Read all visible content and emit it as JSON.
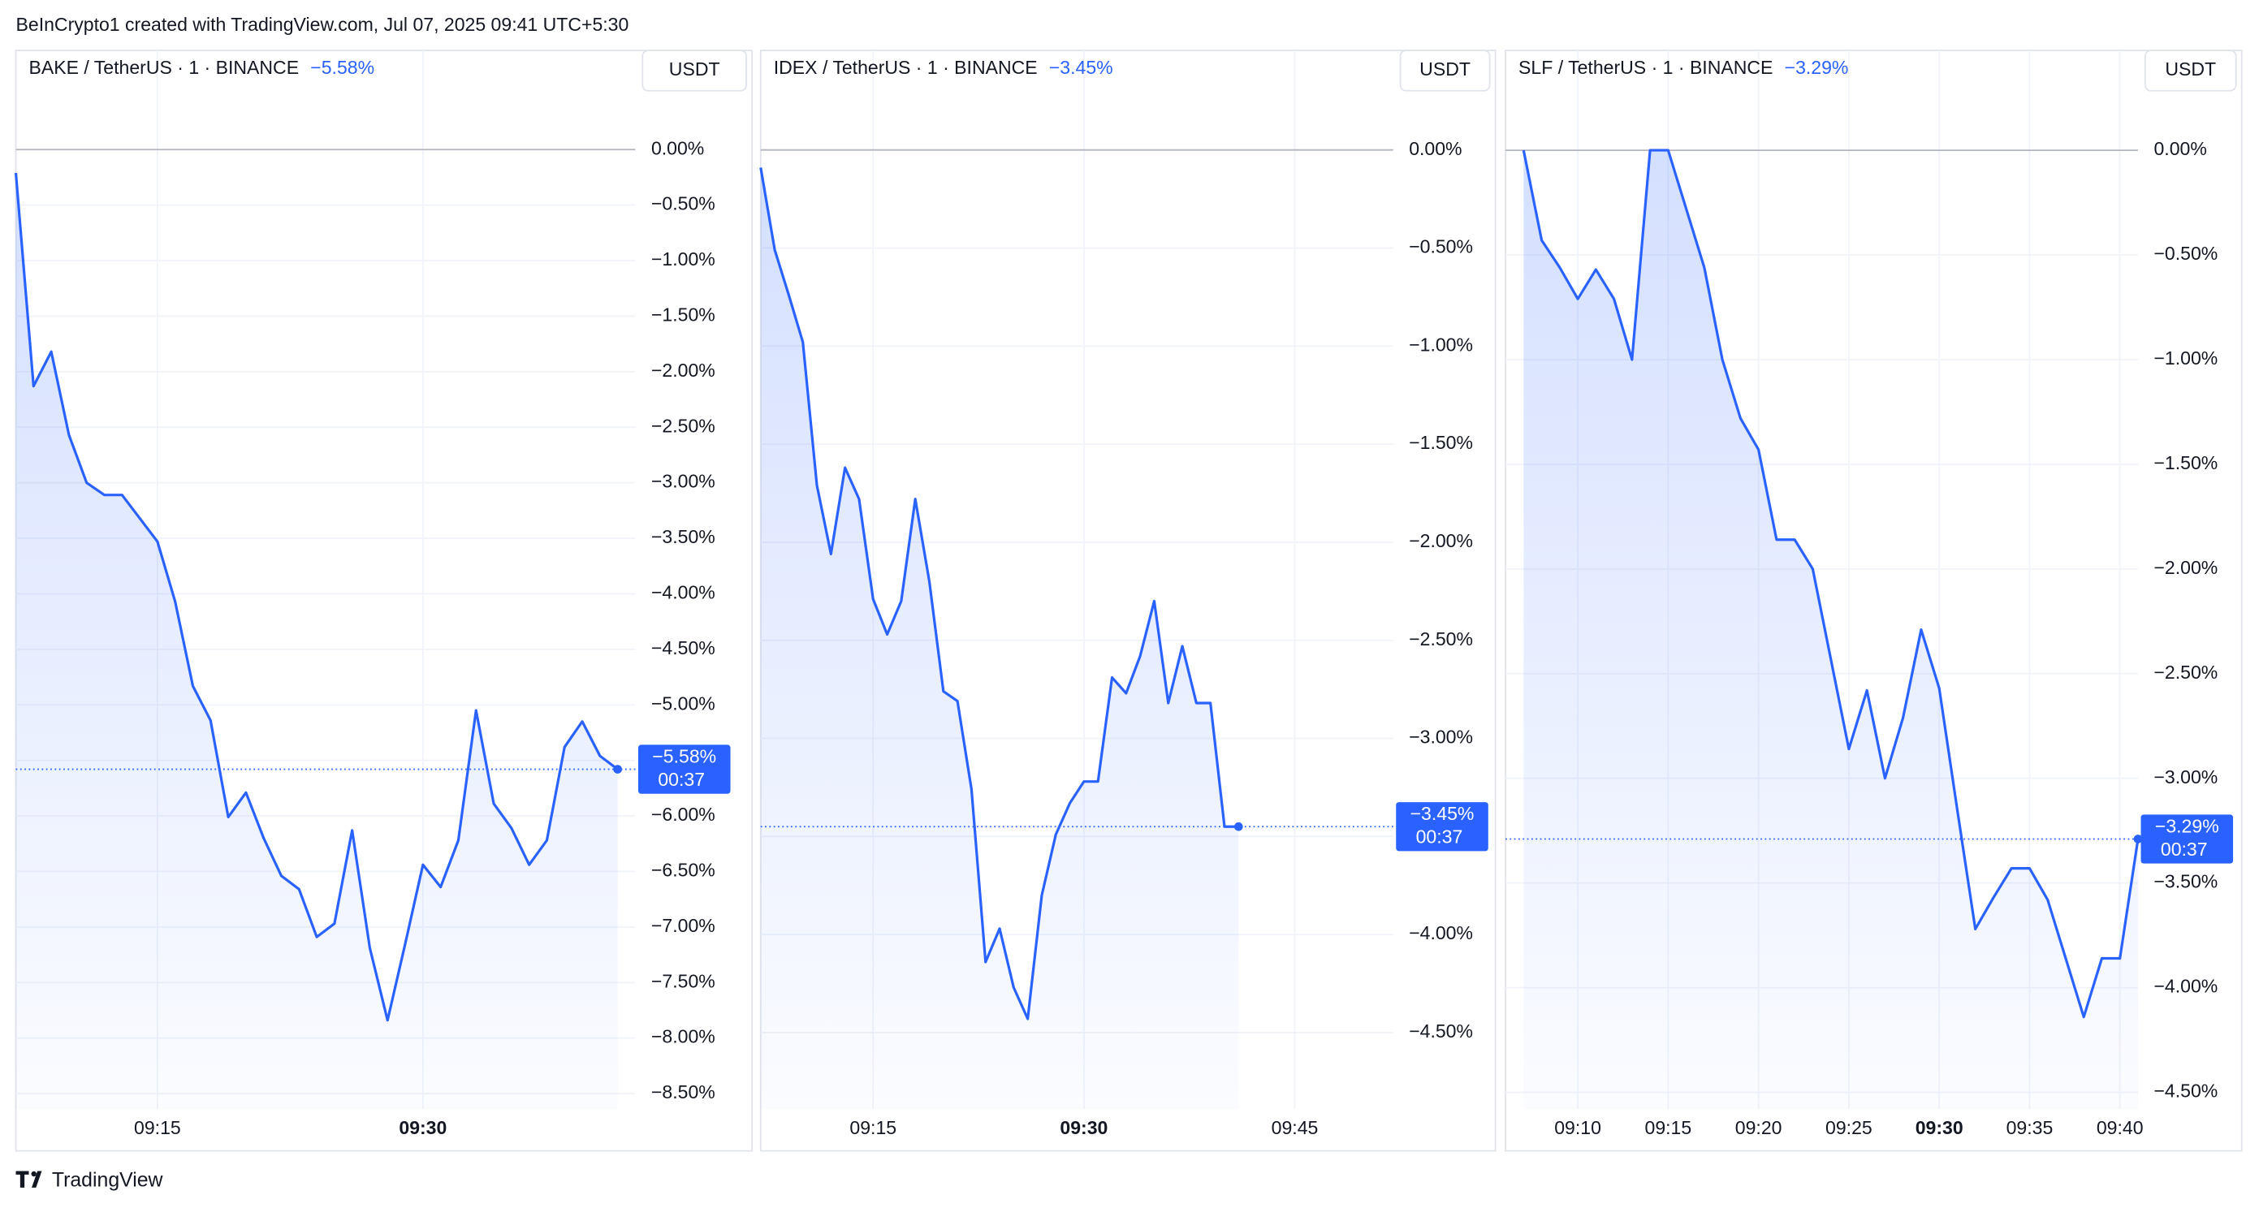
{
  "header": {
    "attribution": "BeInCrypto1 created with TradingView.com, Jul 07, 2025 09:41 UTC+5:30"
  },
  "footer": {
    "brand": "TradingView"
  },
  "chart_data": [
    {
      "type": "line",
      "title": "BAKE / TetherUS · 1 · BINANCE",
      "change_label": "−5.58%",
      "currency": "USDT",
      "price_label": "−5.58%",
      "countdown": "00:37",
      "color": "#2962ff",
      "grid": true,
      "x": [
        "09:07",
        "09:08",
        "09:09",
        "09:10",
        "09:11",
        "09:12",
        "09:13",
        "09:14",
        "09:15",
        "09:16",
        "09:17",
        "09:18",
        "09:19",
        "09:20",
        "09:21",
        "09:22",
        "09:23",
        "09:24",
        "09:25",
        "09:26",
        "09:27",
        "09:28",
        "09:29",
        "09:30",
        "09:31",
        "09:32",
        "09:33",
        "09:34",
        "09:35",
        "09:36",
        "09:37",
        "09:38",
        "09:39",
        "09:40",
        "09:41"
      ],
      "values": [
        -0.21,
        -2.13,
        -1.82,
        -2.57,
        -3.0,
        -3.11,
        -3.11,
        -3.32,
        -3.53,
        -4.07,
        -4.83,
        -5.14,
        -6.01,
        -5.79,
        -6.2,
        -6.54,
        -6.66,
        -7.09,
        -6.97,
        -6.13,
        -7.19,
        -7.84,
        -7.15,
        -6.44,
        -6.64,
        -6.22,
        -5.05,
        -5.89,
        -6.11,
        -6.44,
        -6.22,
        -5.38,
        -5.15,
        -5.46,
        -5.58
      ],
      "xlim": [
        "09:07",
        "09:42"
      ],
      "xticks": [
        "09:15",
        "09:30"
      ],
      "ylim": [
        -8.64,
        0.88
      ],
      "yticks": [
        {
          "value": 0,
          "label": "0.00%"
        },
        {
          "value": -0.5,
          "label": "−0.50%"
        },
        {
          "value": -1,
          "label": "−1.00%"
        },
        {
          "value": -1.5,
          "label": "−1.50%"
        },
        {
          "value": -2,
          "label": "−2.00%"
        },
        {
          "value": -2.5,
          "label": "−2.50%"
        },
        {
          "value": -3,
          "label": "−3.00%"
        },
        {
          "value": -3.5,
          "label": "−3.50%"
        },
        {
          "value": -4,
          "label": "−4.00%"
        },
        {
          "value": -4.5,
          "label": "−4.50%"
        },
        {
          "value": -5,
          "label": "−5.00%"
        },
        {
          "value": -5.5,
          "label": "−5.50%"
        },
        {
          "value": -6,
          "label": "−6.00%"
        },
        {
          "value": -6.5,
          "label": "−6.50%"
        },
        {
          "value": -7,
          "label": "−7.00%"
        },
        {
          "value": -7.5,
          "label": "−7.50%"
        },
        {
          "value": -8,
          "label": "−8.00%"
        },
        {
          "value": -8.5,
          "label": "−8.50%"
        }
      ]
    },
    {
      "type": "line",
      "title": "IDEX / TetherUS · 1 · BINANCE",
      "change_label": "−3.45%",
      "currency": "USDT",
      "price_label": "−3.45%",
      "countdown": "00:37",
      "color": "#2962ff",
      "grid": true,
      "x": [
        "09:07",
        "09:08",
        "09:09",
        "09:10",
        "09:11",
        "09:12",
        "09:13",
        "09:14",
        "09:15",
        "09:16",
        "09:17",
        "09:18",
        "09:19",
        "09:20",
        "09:21",
        "09:22",
        "09:23",
        "09:24",
        "09:25",
        "09:26",
        "09:27",
        "09:28",
        "09:29",
        "09:30",
        "09:31",
        "09:32",
        "09:33",
        "09:34",
        "09:35",
        "09:36",
        "09:37",
        "09:38",
        "09:39",
        "09:40",
        "09:41"
      ],
      "values": [
        -0.09,
        -0.51,
        -0.74,
        -0.98,
        -1.71,
        -2.06,
        -1.62,
        -1.78,
        -2.29,
        -2.47,
        -2.3,
        -1.78,
        -2.2,
        -2.76,
        -2.81,
        -3.26,
        -4.14,
        -3.97,
        -4.27,
        -4.43,
        -3.8,
        -3.49,
        -3.33,
        -3.22,
        -3.22,
        -2.69,
        -2.77,
        -2.58,
        -2.3,
        -2.82,
        -2.53,
        -2.82,
        -2.82,
        -3.45,
        -3.45
      ],
      "xlim": [
        "09:07",
        "09:52"
      ],
      "xticks": [
        "09:15",
        "09:30",
        "09:45"
      ],
      "ylim": [
        -4.89,
        0.5
      ],
      "yticks": [
        {
          "value": 0,
          "label": "0.00%"
        },
        {
          "value": -0.5,
          "label": "−0.50%"
        },
        {
          "value": -1,
          "label": "−1.00%"
        },
        {
          "value": -1.5,
          "label": "−1.50%"
        },
        {
          "value": -2,
          "label": "−2.00%"
        },
        {
          "value": -2.5,
          "label": "−2.50%"
        },
        {
          "value": -3,
          "label": "−3.00%"
        },
        {
          "value": -3.5,
          "label": "−3.50%"
        },
        {
          "value": -4,
          "label": "−4.00%"
        },
        {
          "value": -4.5,
          "label": "−4.50%"
        }
      ]
    },
    {
      "type": "line",
      "title": "SLF / TetherUS · 1 · BINANCE",
      "change_label": "−3.29%",
      "currency": "USDT",
      "price_label": "−3.29%",
      "countdown": "00:37",
      "color": "#2962ff",
      "grid": true,
      "x": [
        "09:07",
        "09:08",
        "09:09",
        "09:10",
        "09:11",
        "09:12",
        "09:13",
        "09:14",
        "09:15",
        "09:16",
        "09:17",
        "09:18",
        "09:19",
        "09:20",
        "09:21",
        "09:22",
        "09:23",
        "09:24",
        "09:25",
        "09:26",
        "09:27",
        "09:28",
        "09:29",
        "09:30",
        "09:31",
        "09:32",
        "09:33",
        "09:34",
        "09:35",
        "09:36",
        "09:37",
        "09:38",
        "09:39",
        "09:40",
        "09:41"
      ],
      "values": [
        0,
        -0.43,
        -0.56,
        -0.71,
        -0.57,
        -0.71,
        -1.0,
        0,
        0,
        -0.28,
        -0.56,
        -1.0,
        -1.28,
        -1.43,
        -1.86,
        -1.86,
        -2.0,
        -2.43,
        -2.86,
        -2.58,
        -3.0,
        -2.71,
        -2.29,
        -2.57,
        -3.15,
        -3.72,
        -3.57,
        -3.43,
        -3.43,
        -3.58,
        -3.86,
        -4.14,
        -3.86,
        -3.86,
        -3.29
      ],
      "xlim": [
        "09:06",
        "09:41"
      ],
      "xticks": [
        "09:10",
        "09:15",
        "09:20",
        "09:25",
        "09:30",
        "09:35",
        "09:40"
      ],
      "ylim": [
        -4.58,
        0.47
      ],
      "yticks": [
        {
          "value": 0,
          "label": "0.00%"
        },
        {
          "value": -0.5,
          "label": "−0.50%"
        },
        {
          "value": -1,
          "label": "−1.00%"
        },
        {
          "value": -1.5,
          "label": "−1.50%"
        },
        {
          "value": -2,
          "label": "−2.00%"
        },
        {
          "value": -2.5,
          "label": "−2.50%"
        },
        {
          "value": -3,
          "label": "−3.00%"
        },
        {
          "value": -3.5,
          "label": "−3.50%"
        },
        {
          "value": -4,
          "label": "−4.00%"
        },
        {
          "value": -4.5,
          "label": "−4.50%"
        }
      ]
    }
  ]
}
